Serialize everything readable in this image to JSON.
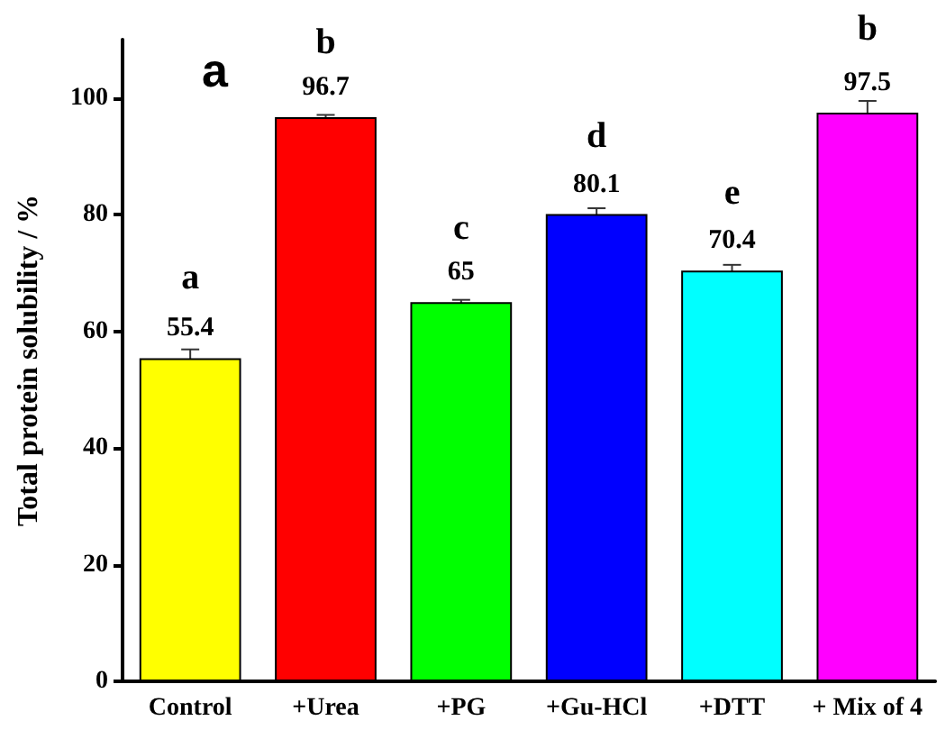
{
  "chart_data": {
    "type": "bar",
    "ylabel": "Total protein solubility / %",
    "categories": [
      "Control",
      "+Urea",
      "+PG",
      "+Gu-HCl",
      "+DTT",
      "+ Mix of 4"
    ],
    "values": [
      55.4,
      96.7,
      65,
      80.1,
      70.4,
      97.5
    ],
    "colors": [
      "#ffff00",
      "#ff0000",
      "#00ff00",
      "#0000ff",
      "#00ffff",
      "#ff00ff"
    ],
    "errors": [
      1.5,
      0.4,
      0.4,
      1.0,
      1.0,
      2.0
    ],
    "ylim": [
      0,
      110
    ],
    "yticks": [
      0,
      20,
      40,
      60,
      80,
      100
    ],
    "grid": false,
    "data_labels": true,
    "annotations": [
      "a",
      {
        "text": "a",
        "x": "Control",
        "y": 55.4
      },
      {
        "text": "b",
        "x": "+Urea",
        "y": 96.7
      },
      {
        "text": "c",
        "x": "+PG",
        "y": 65
      },
      {
        "text": "d",
        "x": "+Gu-HCl",
        "y": 80.1
      },
      {
        "text": "e",
        "x": "+DTT",
        "y": 70.4
      },
      {
        "text": "b",
        "x": "+ Mix of 4",
        "y": 97.5
      }
    ]
  }
}
